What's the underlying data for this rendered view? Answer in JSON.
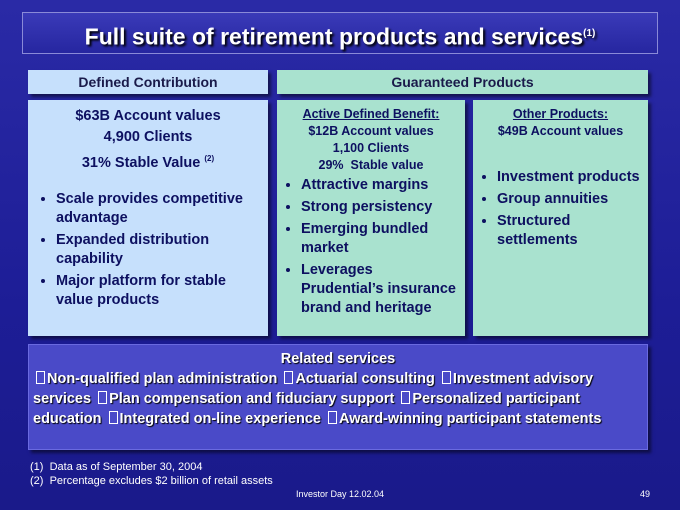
{
  "title": {
    "text": "Full suite of retirement products and services",
    "note": "(1)"
  },
  "defined_contribution": {
    "header": "Defined Contribution",
    "stats": [
      "$63B Account values",
      "4,900 Clients"
    ],
    "stable_value": {
      "text": "31% Stable Value",
      "note": "(2)"
    },
    "bullets": [
      "Scale provides competitive advantage",
      "Expanded distribution capability",
      "Major platform for stable value products"
    ]
  },
  "guaranteed_products": {
    "header": "Guaranteed Products",
    "active_defined_benefit": {
      "heading": "Active Defined Benefit:",
      "stats": [
        "$12B Account values",
        "1,100 Clients",
        "29%  Stable value"
      ],
      "bullets": [
        "Attractive margins",
        "Strong persistency",
        "Emerging bundled market",
        "Leverages Prudential’s insurance brand and heritage"
      ]
    },
    "other_products": {
      "heading": "Other Products:",
      "stats": [
        "$49B Account values"
      ],
      "bullets": [
        "Investment products",
        "Group annuities",
        "Structured settlements"
      ]
    }
  },
  "related_services": {
    "heading": "Related services",
    "items": [
      "Non-qualified plan administration",
      "Actuarial consulting",
      "Investment advisory services",
      "Plan compensation and fiduciary support",
      "Personalized participant education",
      "Integrated on-line experience",
      "Award-winning participant statements"
    ]
  },
  "footnotes": [
    {
      "marker": "(1)",
      "text": "Data as of September 30, 2004"
    },
    {
      "marker": "(2)",
      "text": "Percentage excludes $2 billion of retail assets"
    }
  ],
  "footer": {
    "event": "Investor Day 12.02.04",
    "page": "49"
  }
}
